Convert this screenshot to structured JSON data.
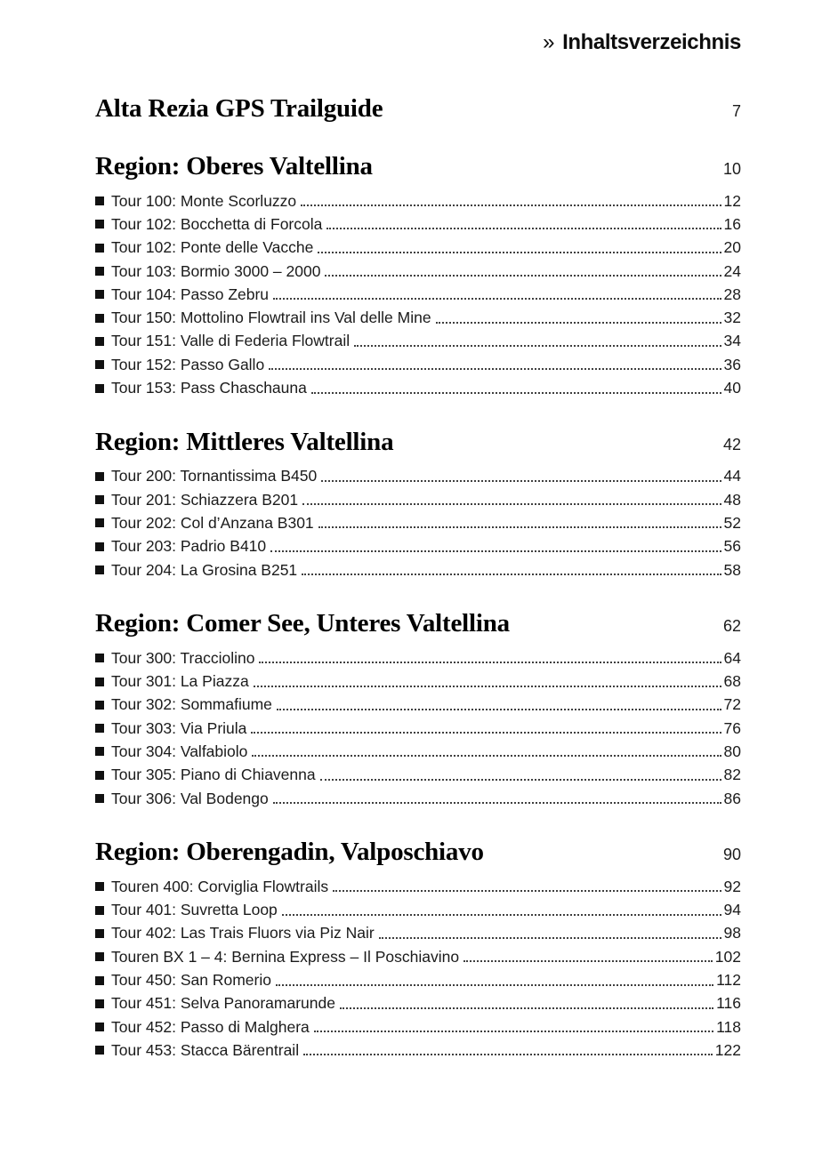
{
  "header": {
    "marker": "»",
    "title": "Inhaltsverzeichnis"
  },
  "book_title": {
    "label": "Alta Rezia GPS Trailguide",
    "page": "7"
  },
  "sections": [
    {
      "heading": "Region: Oberes Valtellina",
      "page": "10",
      "tours": [
        {
          "label": "Tour 100: Monte Scorluzzo",
          "page": "12"
        },
        {
          "label": "Tour 102: Bocchetta di Forcola",
          "page": "16"
        },
        {
          "label": "Tour 102: Ponte delle Vacche",
          "page": "20"
        },
        {
          "label": "Tour 103: Bormio 3000 – 2000",
          "page": "24"
        },
        {
          "label": "Tour 104: Passo Zebru",
          "page": "28"
        },
        {
          "label": "Tour 150: Mottolino Flowtrail ins Val delle Mine",
          "page": "32"
        },
        {
          "label": "Tour 151: Valle di Federia Flowtrail",
          "page": "34"
        },
        {
          "label": "Tour 152: Passo Gallo",
          "page": "36"
        },
        {
          "label": "Tour 153: Pass Chaschauna",
          "page": "40"
        }
      ]
    },
    {
      "heading": "Region: Mittleres Valtellina",
      "page": "42",
      "tours": [
        {
          "label": "Tour 200: Tornantissima B450",
          "page": "44"
        },
        {
          "label": "Tour 201: Schiazzera B201",
          "page": "48"
        },
        {
          "label": "Tour 202: Col d’Anzana B301",
          "page": "52"
        },
        {
          "label": "Tour 203: Padrio B410",
          "page": "56"
        },
        {
          "label": "Tour 204: La Grosina B251",
          "page": "58"
        }
      ]
    },
    {
      "heading": "Region: Comer See, Unteres Valtellina",
      "page": "62",
      "tours": [
        {
          "label": "Tour 300: Tracciolino",
          "page": "64"
        },
        {
          "label": "Tour 301: La Piazza",
          "page": "68"
        },
        {
          "label": "Tour 302: Sommafiume",
          "page": "72"
        },
        {
          "label": "Tour 303: Via Priula",
          "page": "76"
        },
        {
          "label": "Tour 304: Valfabiolo",
          "page": "80"
        },
        {
          "label": "Tour 305: Piano di Chiavenna",
          "page": "82"
        },
        {
          "label": "Tour 306: Val Bodengo",
          "page": "86"
        }
      ]
    },
    {
      "heading": "Region: Oberengadin, Valposchiavo",
      "page": "90",
      "tours": [
        {
          "label": "Touren 400: Corviglia Flowtrails",
          "page": "92"
        },
        {
          "label": "Tour 401: Suvretta Loop",
          "page": "94"
        },
        {
          "label": "Tour 402: Las Trais Fluors via Piz Nair",
          "page": "98"
        },
        {
          "label": "Touren BX 1 – 4: Bernina Express – Il Poschiavino",
          "page": "102"
        },
        {
          "label": "Tour 450: San Romerio",
          "page": "112"
        },
        {
          "label": "Tour 451: Selva Panoramarunde",
          "page": "116"
        },
        {
          "label": "Tour 452: Passo di Malghera",
          "page": "118"
        },
        {
          "label": "Tour 453: Stacca Bärentrail",
          "page": "122"
        }
      ]
    }
  ],
  "colors": {
    "text": "#1b1b1b",
    "heading": "#000000",
    "leader_dots": "#3f3f3f",
    "background": "#ffffff"
  }
}
